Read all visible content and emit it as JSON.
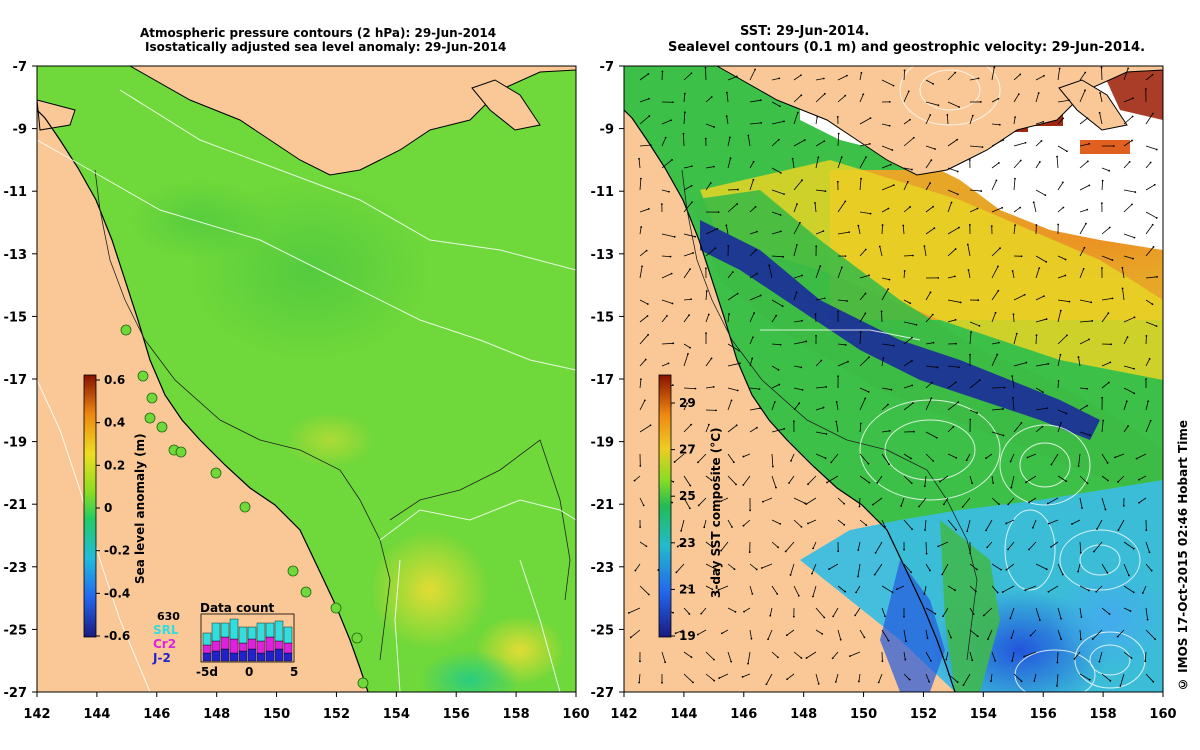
{
  "left_panel": {
    "title_line1": "Atmospheric pressure contours (2 hPa): 29-Jun-2014",
    "title_line2": "Isostatically adjusted sea level anomaly: 29-Jun-2014",
    "colorbar_label": "Sea level anomaly (m)",
    "colorbar_ticks": [
      "0.6",
      "0.4",
      "0.2",
      "0",
      "-0.2",
      "-0.4",
      "-0.6"
    ],
    "inset": {
      "title": "Data count",
      "count": "630",
      "legend": [
        {
          "label": "SRL",
          "color": "#33dddd"
        },
        {
          "label": "Cr2",
          "color": "#dd22dd"
        },
        {
          "label": "J-2",
          "color": "#2222cc"
        }
      ],
      "x_ticks": [
        "-5d",
        "0",
        "5"
      ]
    }
  },
  "right_panel": {
    "title_line1": "SST: 29-Jun-2014.",
    "title_line2": "Sealevel contours (0.1 m) and geostrophic velocity: 29-Jun-2014.",
    "colorbar_label": "3-day SST composite (°C)",
    "colorbar_ticks": [
      "29",
      "27",
      "25",
      "23",
      "21",
      "19"
    ]
  },
  "axes": {
    "lon_ticks": [
      "142",
      "144",
      "146",
      "148",
      "150",
      "152",
      "154",
      "156",
      "158",
      "160"
    ],
    "lat_ticks": [
      "-7",
      "-9",
      "-11",
      "-13",
      "-15",
      "-17",
      "-19",
      "-21",
      "-23",
      "-25",
      "-27"
    ]
  },
  "credit": "© IMOS 17-Oct-2015 02:46 Hobart Time",
  "colors": {
    "land": "#f9c896",
    "ocean_anomaly": "#66dd33",
    "sst_warm": "#f0a020",
    "sst_cool": "#33aadd"
  }
}
